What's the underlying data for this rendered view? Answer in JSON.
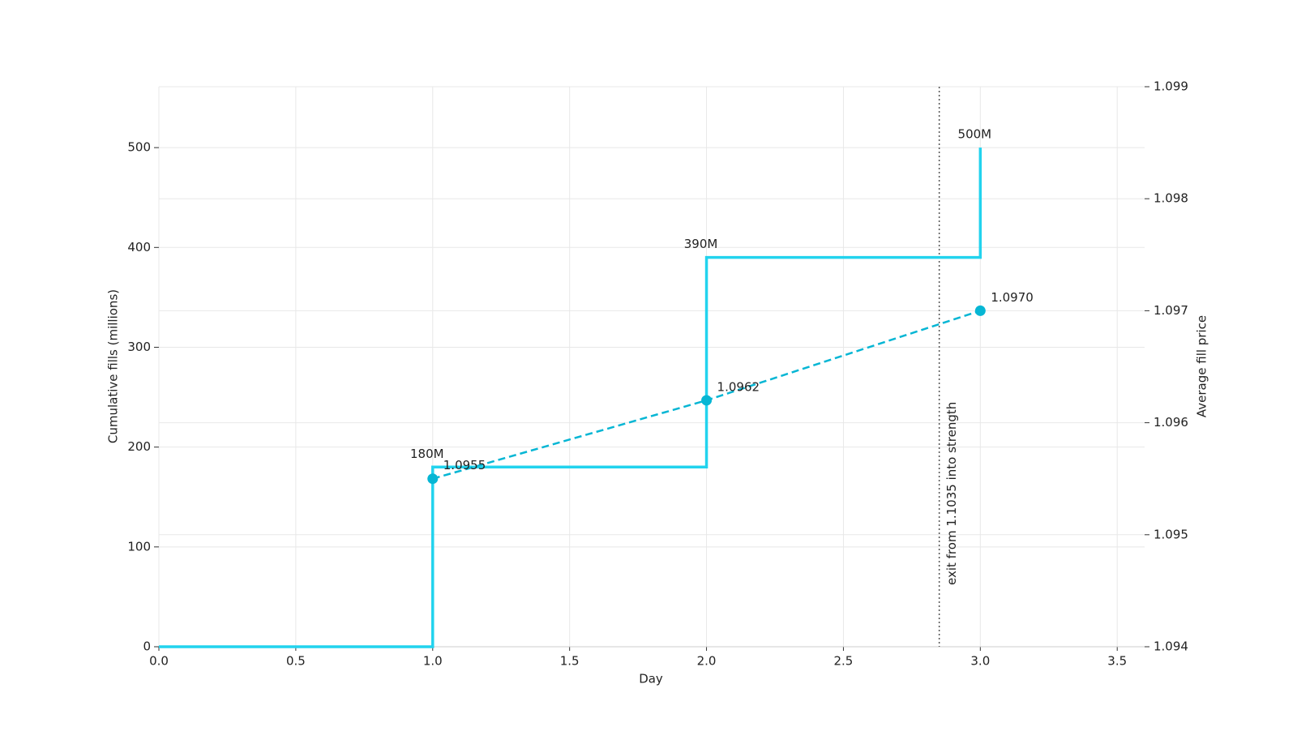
{
  "chart_data": {
    "type": "step",
    "x_label": "Day",
    "y_label": "Cumulative fills (millions)",
    "y2_label": "Average fill price",
    "xlim": [
      0,
      3.6
    ],
    "ylim": [
      0,
      561
    ],
    "y2lim": [
      1.094,
      1.099
    ],
    "xticks": [
      {
        "value": 0,
        "label": "0.0"
      },
      0.5,
      {
        "value": 1,
        "label": "1.0"
      },
      1.5,
      {
        "value": 2,
        "label": "2.0"
      },
      2.5,
      {
        "value": 3,
        "label": "3.0"
      },
      3.5
    ],
    "yticks": [
      0,
      100,
      200,
      300,
      400,
      500
    ],
    "y2ticks": [
      1.094,
      1.095,
      1.096,
      1.097,
      1.098,
      1.099
    ],
    "grid": true,
    "series": [
      {
        "color": "#22d3ee",
        "x": [
          0,
          1,
          2,
          3
        ],
        "values": [
          0,
          180,
          390,
          500
        ],
        "value_labels": [
          null,
          "180M",
          "390M",
          "500M"
        ]
      },
      {
        "color": "#06b6d4",
        "axis": "y2",
        "dashed": true,
        "markers": true,
        "x": [
          1,
          2,
          3
        ],
        "values": [
          1.0955,
          1.0962,
          1.097
        ],
        "value_labels": [
          "1.0955",
          "1.0962",
          "1.0970"
        ]
      }
    ],
    "vline": {
      "x": 2.85,
      "label": "exit from 1.1035 into strength"
    }
  }
}
